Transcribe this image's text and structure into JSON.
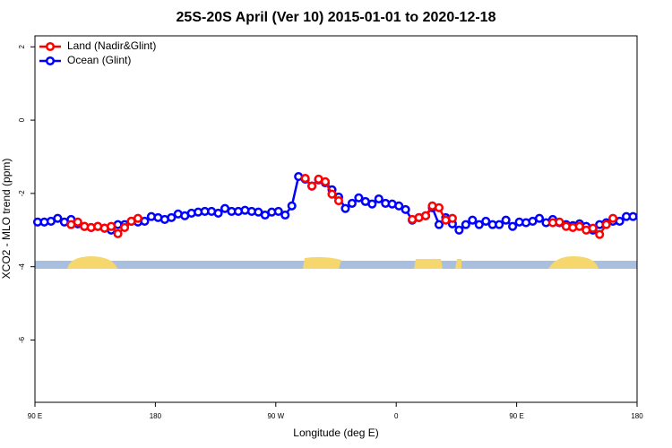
{
  "chart_data": {
    "type": "line",
    "title": "25S-20S April (Ver 10)   2015-01-01 to 2020-12-18",
    "xlabel": "Longitude (deg E)",
    "ylabel": "XCO2 - MLO trend (ppm)",
    "x": [
      92,
      97,
      102,
      107,
      112,
      117,
      122,
      127,
      132,
      137,
      142,
      147,
      152,
      157,
      162,
      167,
      172,
      177,
      182,
      187,
      192,
      197,
      202,
      207,
      212,
      217,
      222,
      227,
      232,
      237,
      242,
      247,
      252,
      257,
      262,
      267,
      272,
      277,
      282,
      287,
      292,
      297,
      302,
      307,
      312,
      317,
      322,
      327,
      332,
      337,
      342,
      347,
      352,
      357,
      362,
      367,
      372,
      377,
      382,
      387,
      392,
      397,
      402,
      407,
      412,
      417,
      422,
      427,
      432,
      437,
      442,
      447,
      452,
      457,
      462,
      467,
      472,
      477,
      482,
      487,
      492,
      497,
      502,
      507,
      512,
      517,
      522,
      527,
      532,
      537
    ],
    "xlim": [
      90,
      540
    ],
    "xticks": [
      {
        "value": 90,
        "label": "90 E"
      },
      180,
      {
        "value": 270,
        "label": "90 W"
      },
      {
        "value": 360,
        "label": "0"
      },
      {
        "value": 450,
        "label": "90 E"
      },
      {
        "value": 540,
        "label": "180"
      }
    ],
    "ylim": [
      -7.7,
      2.3
    ],
    "yticks": [
      -6,
      -4,
      -2,
      0,
      2
    ],
    "legend": "top-left",
    "series": [
      {
        "name": "Ocean (Glint)",
        "color": "#0000ff",
        "values": [
          -2.78,
          -2.78,
          -2.76,
          -2.68,
          -2.78,
          -2.71,
          -2.83,
          -2.9,
          -2.93,
          -2.9,
          -2.95,
          -3.0,
          -2.85,
          -2.85,
          -2.76,
          -2.78,
          -2.76,
          -2.63,
          -2.66,
          -2.71,
          -2.66,
          -2.56,
          -2.61,
          -2.54,
          -2.51,
          -2.49,
          -2.49,
          -2.54,
          -2.41,
          -2.49,
          -2.49,
          -2.46,
          -2.49,
          -2.51,
          -2.59,
          -2.51,
          -2.49,
          -2.59,
          -2.34,
          -1.54,
          -1.61,
          -1.8,
          -1.63,
          -1.71,
          -1.9,
          -2.1,
          -2.41,
          -2.27,
          -2.12,
          -2.22,
          -2.29,
          -2.15,
          -2.27,
          -2.29,
          -2.34,
          -2.44,
          -2.73,
          -2.66,
          -2.61,
          -2.39,
          -2.85,
          -2.66,
          -2.83,
          -3.0,
          -2.85,
          -2.73,
          -2.85,
          -2.76,
          -2.85,
          -2.85,
          -2.73,
          -2.9,
          -2.78,
          -2.8,
          -2.76,
          -2.68,
          -2.8,
          -2.71,
          -2.8,
          -2.85,
          -2.88,
          -2.83,
          -2.9,
          -3.0,
          -2.85,
          -2.8,
          -2.76,
          -2.76,
          -2.63,
          -2.63
        ]
      },
      {
        "name": "Land (Nadir&Glint)",
        "color": "#ff0000",
        "values": [
          null,
          null,
          null,
          null,
          null,
          -2.85,
          -2.78,
          -2.9,
          -2.93,
          -2.9,
          -2.95,
          -2.9,
          -3.1,
          -2.93,
          -2.76,
          -2.68,
          null,
          null,
          null,
          null,
          null,
          null,
          null,
          null,
          null,
          null,
          null,
          null,
          null,
          null,
          null,
          null,
          null,
          null,
          null,
          null,
          null,
          null,
          null,
          null,
          -1.59,
          -1.8,
          -1.61,
          -1.68,
          -2.02,
          -2.2,
          null,
          null,
          null,
          null,
          null,
          null,
          null,
          null,
          null,
          null,
          -2.71,
          -2.66,
          -2.61,
          -2.34,
          -2.39,
          -2.73,
          -2.68,
          null,
          null,
          null,
          null,
          null,
          null,
          null,
          null,
          null,
          null,
          null,
          null,
          null,
          null,
          -2.8,
          -2.78,
          -2.9,
          -2.93,
          -2.9,
          -3.0,
          -2.95,
          -3.12,
          -2.85,
          -2.68,
          null,
          null,
          null
        ]
      }
    ]
  }
}
